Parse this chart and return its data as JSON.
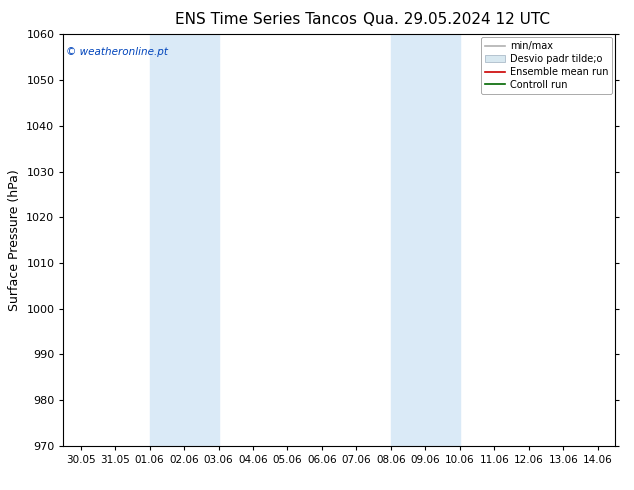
{
  "title_left": "ENS Time Series Tancos",
  "title_right": "Qua. 29.05.2024 12 UTC",
  "ylabel": "Surface Pressure (hPa)",
  "ylim": [
    970,
    1060
  ],
  "yticks": [
    970,
    980,
    990,
    1000,
    1010,
    1020,
    1030,
    1040,
    1050,
    1060
  ],
  "xtick_labels": [
    "30.05",
    "31.05",
    "01.06",
    "02.06",
    "03.06",
    "04.06",
    "05.06",
    "06.06",
    "07.06",
    "08.06",
    "09.06",
    "10.06",
    "11.06",
    "12.06",
    "13.06",
    "14.06"
  ],
  "shade_bands": [
    {
      "xstart": 2,
      "xend": 4
    },
    {
      "xstart": 9,
      "xend": 11
    }
  ],
  "shade_color": "#daeaf7",
  "watermark": "© weatheronline.pt",
  "watermark_color": "#0044bb",
  "legend_entries": [
    {
      "label": "min/max",
      "color": "#b0b0b0",
      "type": "line"
    },
    {
      "label": "Desvio padr tilde;o",
      "color": "#d8e8f0",
      "type": "fill"
    },
    {
      "label": "Ensemble mean run",
      "color": "#cc0000",
      "type": "line"
    },
    {
      "label": "Controll run",
      "color": "#006600",
      "type": "line"
    }
  ],
  "bg_color": "#ffffff",
  "plot_bg_color": "#ffffff",
  "title_fontsize": 11,
  "ylabel_fontsize": 9,
  "tick_fontsize": 8,
  "xtick_fontsize": 7.5
}
